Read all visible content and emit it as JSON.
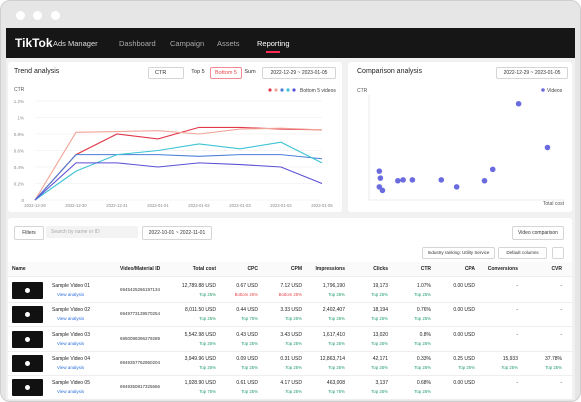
{
  "nav": {
    "logo": "TikTok",
    "product": "Ads Manager",
    "items": [
      "Dashboard",
      "Campaign",
      "Assets",
      "Reporting"
    ],
    "active": 3
  },
  "trend": {
    "title": "Trend analysis",
    "metric": "CTR",
    "tabs": [
      "Top 5",
      "Bottom 5",
      "Sum"
    ],
    "selected_tab": 1,
    "date_range": "2022-12-29 ~ 2023-01-05",
    "chart": {
      "type": "line",
      "y_label": "CTR",
      "legend": "Bottom 5 videos",
      "x": [
        "2022-12-29",
        "2022-12-30",
        "2022-12-31",
        "2023-01-01",
        "2023-01-02",
        "2023-01-03",
        "2023-01-04",
        "2023-01-05"
      ],
      "ylim": [
        0,
        1.2
      ],
      "yticks": [
        0,
        {
          "value": 0.2,
          "label": "0.2%"
        },
        {
          "value": 0.4,
          "label": "0.4%"
        },
        {
          "value": 0.6,
          "label": "0.6%"
        },
        {
          "value": 0.8,
          "label": "0.8%"
        },
        {
          "value": 1,
          "label": "1%"
        },
        {
          "value": 1.2,
          "label": "1.2%"
        }
      ],
      "grid": true,
      "series": [
        {
          "color": "#e0384a",
          "values": [
            0,
            0.55,
            0.8,
            0.74,
            0.88,
            0.88,
            0.86,
            0.85
          ]
        },
        {
          "color": "#f2a497",
          "values": [
            0,
            0.82,
            0.83,
            0.84,
            0.8,
            0.86,
            0.87,
            0.85
          ]
        },
        {
          "color": "#4a7fd9",
          "values": [
            0,
            0.55,
            0.55,
            0.55,
            0.53,
            0.55,
            0.55,
            0.5
          ]
        },
        {
          "color": "#3cc3d4",
          "values": [
            0,
            0.35,
            0.55,
            0.6,
            0.68,
            0.62,
            0.7,
            0.45
          ]
        },
        {
          "color": "#5b4fd6",
          "values": [
            0,
            0.45,
            0.45,
            0.4,
            0.45,
            0.43,
            0.4,
            0.2
          ]
        }
      ]
    }
  },
  "comparison": {
    "title": "Comparison analysis",
    "date_range": "2022-12-29 ~ 2023-01-05",
    "chart": {
      "type": "scatter",
      "y_label": "CTR",
      "x_label": "Total cost",
      "xlim": [
        0,
        15000
      ],
      "ylim": [
        0,
        1.2
      ],
      "series": [
        {
          "name": "Videos",
          "color": "#6b6be0",
          "x": [
            790,
            870,
            790,
            1030,
            2210,
            2610,
            3320,
            5530,
            6710,
            8840,
            9470,
            11450,
            13660
          ],
          "values": [
            0.33,
            0.25,
            0.15,
            0.11,
            0.22,
            0.23,
            0.23,
            0.23,
            0.15,
            0.22,
            0.35,
            1.1,
            0.6
          ]
        }
      ]
    }
  },
  "table": {
    "filters": "Filters",
    "search": "Search by name or ID",
    "date_range": "2022-10-01 ~ 2022-11-01",
    "video_comparison": "Video comparison",
    "industry": "Industry ranking: Utility Service",
    "columns_select": "Default columns",
    "headers": [
      "Name",
      "Video/Material ID",
      "Total cost",
      "CPC",
      "CPM",
      "Impressions",
      "Clicks",
      "CTR",
      "CPA",
      "Conversions",
      "CVR"
    ],
    "rows": [
      {
        "name": "Sample Video 01",
        "link": "View analysis",
        "id": "6945425266197134",
        "metrics": [
          {
            "value": "12,789.88 USD",
            "rank": "Top 25%",
            "color": "#1f9d6b"
          },
          {
            "value": "0.67 USD",
            "rank": "Bottom 25%",
            "color": "#e5484d"
          },
          {
            "value": "7.12 USD",
            "rank": "Bottom 25%",
            "color": "#e5484d"
          },
          {
            "value": "1,796,190",
            "rank": "Top 25%",
            "color": "#1f9d6b"
          },
          {
            "value": "19,173",
            "rank": "Top 25%",
            "color": "#1f9d6b"
          },
          {
            "value": "1.07%",
            "rank": "Top 25%",
            "color": "#1f9d6b"
          },
          {
            "value": "0.00 USD"
          },
          {
            "value": "-"
          },
          {
            "value": "-"
          }
        ]
      },
      {
        "name": "Sample Video 02",
        "link": "View analysis",
        "id": "6949773139570254",
        "metrics": [
          {
            "value": "8,011.50 USD",
            "rank": "Top 25%",
            "color": "#1f9d6b"
          },
          {
            "value": "0.44 USD",
            "rank": "Top 75%",
            "color": "#1f9d6b"
          },
          {
            "value": "3.33 USD",
            "rank": "Top 25%",
            "color": "#1f9d6b"
          },
          {
            "value": "2,402,407",
            "rank": "Top 25%",
            "color": "#1f9d6b"
          },
          {
            "value": "18,194",
            "rank": "Top 25%",
            "color": "#1f9d6b"
          },
          {
            "value": "0.76%",
            "rank": "Top 25%",
            "color": "#1f9d6b"
          },
          {
            "value": "0.00 USD"
          },
          {
            "value": "-"
          },
          {
            "value": "-"
          }
        ]
      },
      {
        "name": "Sample Video 03",
        "link": "View analysis",
        "id": "6950098396279289",
        "metrics": [
          {
            "value": "5,542.98 USD",
            "rank": "Top 25%",
            "color": "#1f9d6b"
          },
          {
            "value": "0.43 USD",
            "rank": "Top 25%",
            "color": "#1f9d6b"
          },
          {
            "value": "3.43 USD",
            "rank": "Top 25%",
            "color": "#1f9d6b"
          },
          {
            "value": "1,617,410",
            "rank": "Top 25%",
            "color": "#1f9d6b"
          },
          {
            "value": "13,020",
            "rank": "Top 25%",
            "color": "#1f9d6b"
          },
          {
            "value": "0.8%",
            "rank": "Top 25%",
            "color": "#1f9d6b"
          },
          {
            "value": "0.00 USD"
          },
          {
            "value": "-"
          },
          {
            "value": "-"
          }
        ]
      },
      {
        "name": "Sample Video 04",
        "link": "View analysis",
        "id": "6949357762950204",
        "metrics": [
          {
            "value": "3,949.96 USD",
            "rank": "Top 25%",
            "color": "#1f9d6b"
          },
          {
            "value": "0.09 USD",
            "rank": "Top 25%",
            "color": "#1f9d6b"
          },
          {
            "value": "0.31 USD",
            "rank": "Top 25%",
            "color": "#1f9d6b"
          },
          {
            "value": "12,863,714",
            "rank": "Top 25%",
            "color": "#1f9d6b"
          },
          {
            "value": "42,171",
            "rank": "Top 25%",
            "color": "#1f9d6b"
          },
          {
            "value": "0.33%",
            "rank": "Top 25%",
            "color": "#1f9d6b"
          },
          {
            "value": "0.25 USD",
            "rank": "Top 25%",
            "color": "#1f9d6b"
          },
          {
            "value": "15,933",
            "rank": "Top 25%",
            "color": "#1f9d6b"
          },
          {
            "value": "37.78%",
            "rank": "Top 25%",
            "color": "#1f9d6b"
          }
        ]
      },
      {
        "name": "Sample Video 05",
        "link": "View analysis",
        "id": "6949350817325666",
        "metrics": [
          {
            "value": "1,928.90 USD",
            "rank": "Top 75%",
            "color": "#1f9d6b"
          },
          {
            "value": "0.61 USD",
            "rank": "Top 25%",
            "color": "#1f9d6b"
          },
          {
            "value": "4.17 USD",
            "rank": "Top 25%",
            "color": "#1f9d6b"
          },
          {
            "value": "463,008",
            "rank": "Top 75%",
            "color": "#1f9d6b"
          },
          {
            "value": "3,137",
            "rank": "Top 25%",
            "color": "#1f9d6b"
          },
          {
            "value": "0.68%",
            "rank": "Top 25%",
            "color": "#1f9d6b"
          },
          {
            "value": "0.00 USD"
          },
          {
            "value": "-"
          },
          {
            "value": "-"
          }
        ]
      }
    ]
  }
}
